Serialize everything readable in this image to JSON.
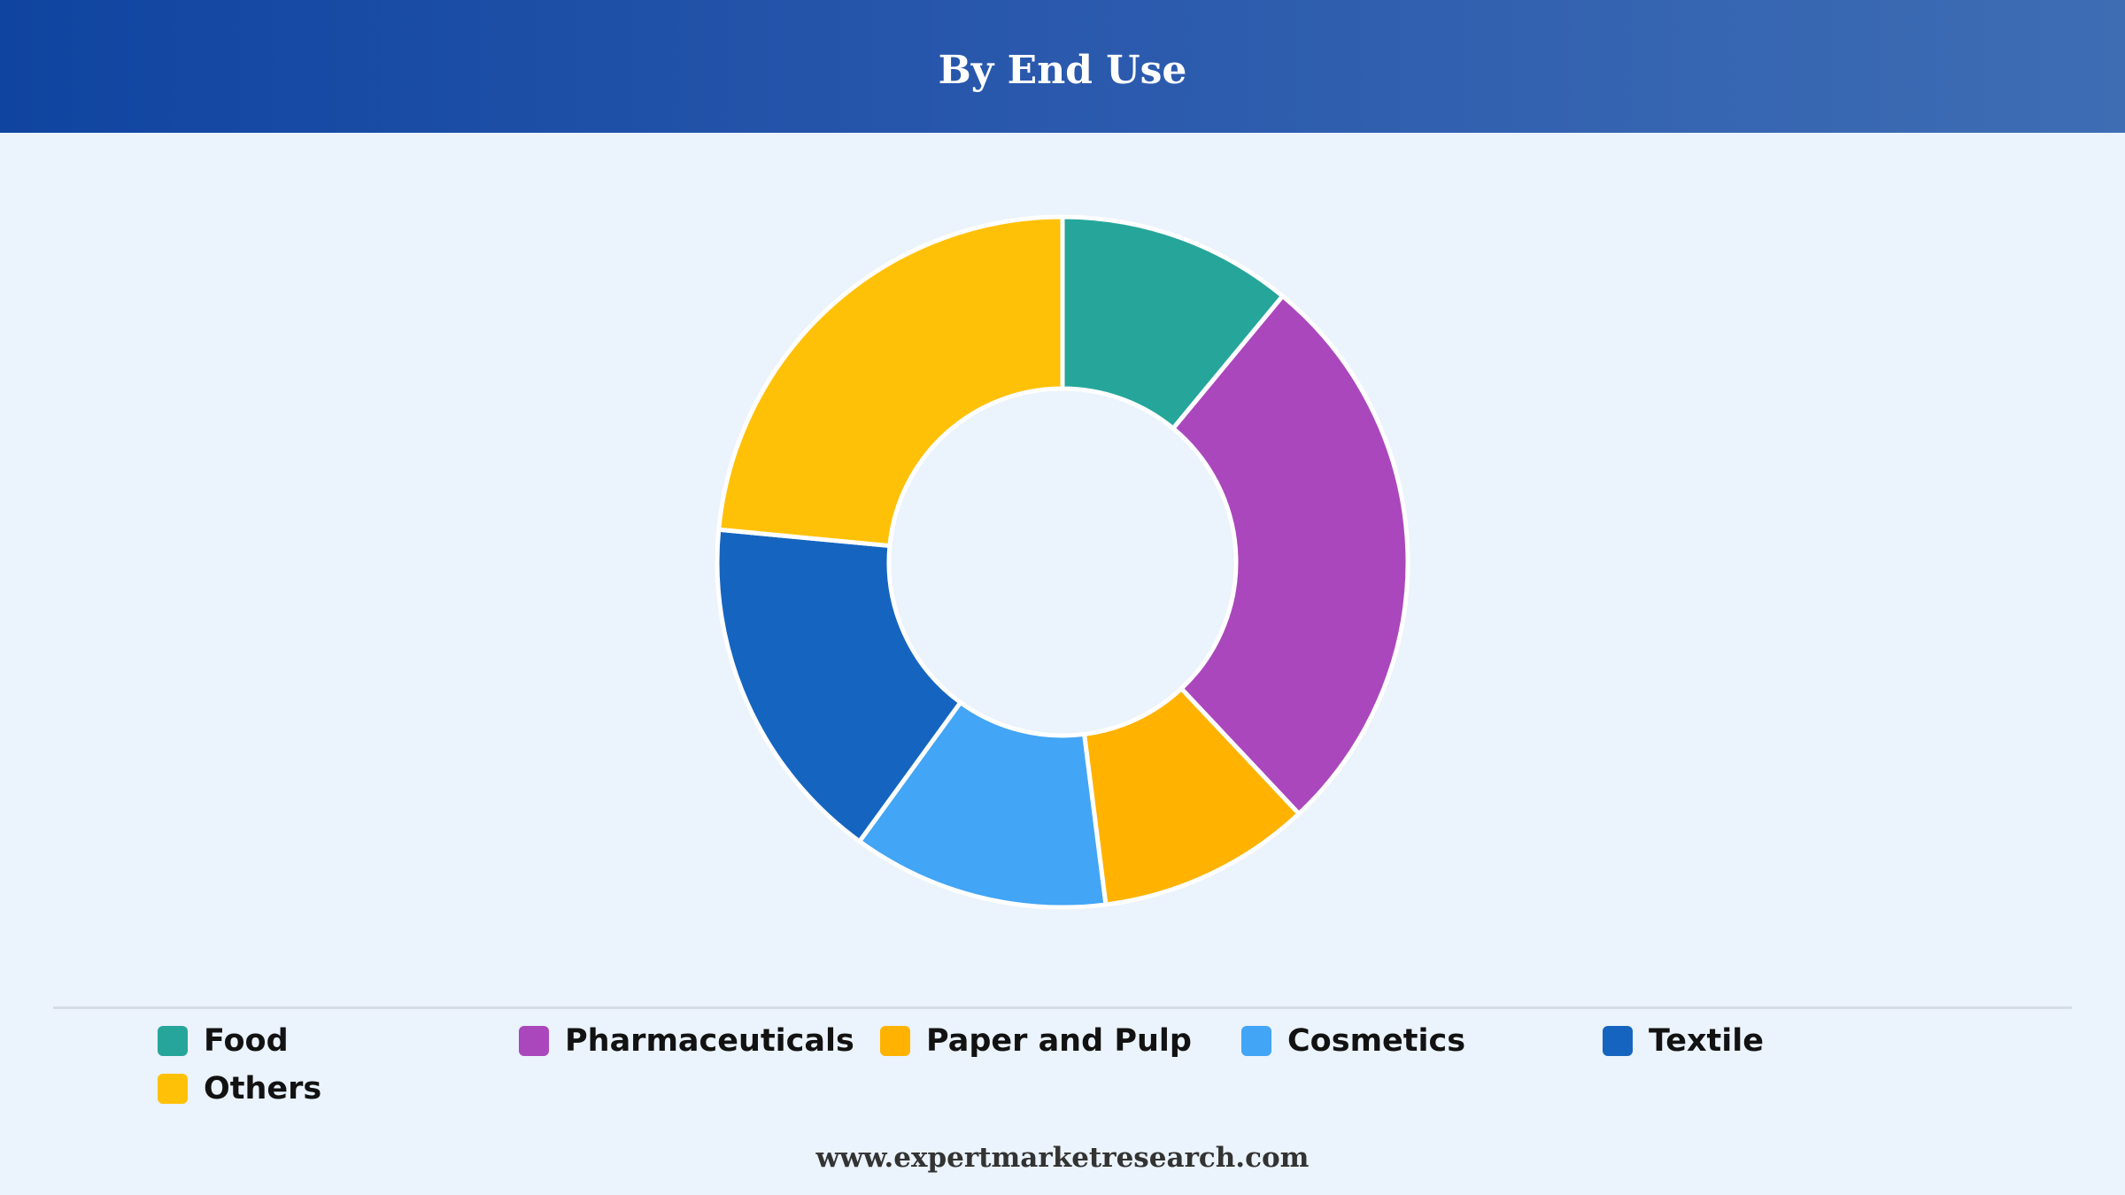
{
  "header": {
    "title": "By End Use"
  },
  "chart_data": {
    "type": "pie",
    "donut": true,
    "title": "By End Use",
    "categories": [
      "Food",
      "Pharmaceuticals",
      "Paper and Pulp",
      "Cosmetics",
      "Textile",
      "Others"
    ],
    "values": [
      11,
      27,
      10,
      12,
      16.5,
      23.5
    ],
    "colors": [
      "#26a69a",
      "#ab47bc",
      "#ffb300",
      "#42a5f5",
      "#1565c0",
      "#ffc107"
    ],
    "legend": "bottom",
    "start_angle": "12 o'clock",
    "direction": "clockwise"
  },
  "legend": {
    "items": [
      {
        "label": "Food",
        "color": "#26a69a"
      },
      {
        "label": "Pharmaceuticals",
        "color": "#ab47bc"
      },
      {
        "label": "Paper and Pulp",
        "color": "#ffb300"
      },
      {
        "label": "Cosmetics",
        "color": "#42a5f5"
      },
      {
        "label": "Textile",
        "color": "#1565c0"
      },
      {
        "label": "Others",
        "color": "#ffc107"
      }
    ]
  },
  "footer": {
    "url": "www.expertmarketresearch.com"
  }
}
